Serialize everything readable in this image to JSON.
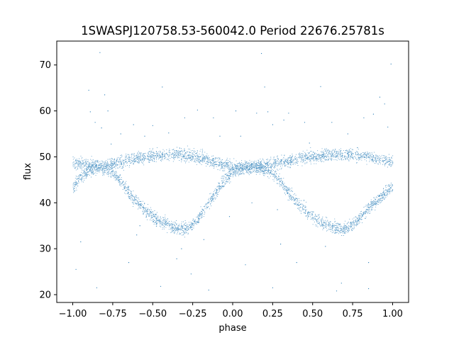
{
  "chart_data": {
    "type": "scatter",
    "title": "1SWASPJ120758.53-560042.0 Period 22676.25781s",
    "xlabel": "phase",
    "ylabel": "flux",
    "xlim": [
      -1.1,
      1.1
    ],
    "ylim": [
      18.3,
      75.2
    ],
    "xticks": [
      -1.0,
      -0.75,
      -0.5,
      -0.25,
      0.0,
      0.25,
      0.5,
      0.75,
      1.0
    ],
    "xtick_labels": [
      "−1.00",
      "−0.75",
      "−0.50",
      "−0.25",
      "0.00",
      "0.25",
      "0.50",
      "0.75",
      "1.00"
    ],
    "yticks": [
      20,
      30,
      40,
      50,
      60,
      70
    ],
    "ytick_labels": [
      "20",
      "30",
      "40",
      "50",
      "60",
      "70"
    ],
    "grid": false,
    "legend": "none",
    "color": "#1f77b4",
    "series": [
      {
        "x": [
          -1.0,
          -0.95,
          -0.9,
          -0.85,
          -0.8,
          -0.75,
          -0.7,
          -0.65,
          -0.6,
          -0.55,
          -0.5,
          -0.45,
          -0.4,
          -0.35,
          -0.3,
          -0.25,
          -0.2,
          -0.15,
          -0.1,
          -0.05,
          0.0,
          0.05,
          0.1,
          0.15,
          0.2,
          0.25,
          0.3,
          0.35,
          0.4,
          0.45,
          0.5,
          0.55,
          0.6,
          0.65,
          0.7,
          0.75,
          0.8,
          0.85,
          0.9,
          0.95,
          1.0
        ],
        "y": [
          43.5,
          45.5,
          47.0,
          47.5,
          47.5,
          46.5,
          44.5,
          42.0,
          40.0,
          38.5,
          37.0,
          35.8,
          35.0,
          34.5,
          34.3,
          35.3,
          37.5,
          40.0,
          42.5,
          45.0,
          46.5,
          47.5,
          47.8,
          47.7,
          47.3,
          46.5,
          44.5,
          42.0,
          40.0,
          38.5,
          37.0,
          35.8,
          35.0,
          34.5,
          34.3,
          35.3,
          37.0,
          39.0,
          40.5,
          42.0,
          43.5
        ]
      },
      {
        "x": [
          -1.0,
          -0.95,
          -0.9,
          -0.85,
          -0.8,
          -0.75,
          -0.7,
          -0.65,
          -0.6,
          -0.55,
          -0.5,
          -0.45,
          -0.4,
          -0.35,
          -0.3,
          -0.25,
          -0.2,
          -0.15,
          -0.1,
          -0.05,
          0.0,
          0.05,
          0.1,
          0.15,
          0.2,
          0.25,
          0.3,
          0.35,
          0.4,
          0.45,
          0.5,
          0.55,
          0.6,
          0.65,
          0.7,
          0.75,
          0.8,
          0.85,
          0.9,
          0.95,
          1.0
        ],
        "y": [
          48.8,
          48.5,
          48.2,
          48.0,
          48.0,
          48.3,
          48.8,
          49.3,
          49.7,
          50.0,
          50.2,
          50.4,
          50.5,
          50.5,
          50.4,
          50.2,
          49.8,
          49.3,
          48.8,
          48.3,
          47.8,
          47.7,
          47.8,
          48.0,
          48.2,
          48.5,
          48.8,
          49.2,
          49.5,
          49.8,
          50.0,
          50.2,
          50.4,
          50.5,
          50.5,
          50.4,
          50.2,
          49.9,
          49.5,
          49.2,
          48.8
        ]
      }
    ],
    "outliers": [
      [
        -0.83,
        72.7
      ],
      [
        -0.9,
        64.5
      ],
      [
        -0.89,
        59.8
      ],
      [
        -0.86,
        57.5
      ],
      [
        -0.82,
        56.3
      ],
      [
        -0.78,
        60.0
      ],
      [
        -0.8,
        63.5
      ],
      [
        -0.76,
        52.8
      ],
      [
        -0.7,
        55.0
      ],
      [
        -0.62,
        57.0
      ],
      [
        -0.58,
        35.0
      ],
      [
        -0.55,
        54.5
      ],
      [
        -0.5,
        56.8
      ],
      [
        -0.44,
        65.2
      ],
      [
        -0.4,
        55.2
      ],
      [
        -0.35,
        27.8
      ],
      [
        -0.32,
        30.0
      ],
      [
        -0.3,
        58.5
      ],
      [
        -0.26,
        24.5
      ],
      [
        -0.22,
        60.2
      ],
      [
        -0.18,
        32.0
      ],
      [
        -0.12,
        58.5
      ],
      [
        -0.08,
        54.5
      ],
      [
        -0.06,
        43.5
      ],
      [
        -0.02,
        37.0
      ],
      [
        0.02,
        60.0
      ],
      [
        0.05,
        54.5
      ],
      [
        0.08,
        26.5
      ],
      [
        0.12,
        40.0
      ],
      [
        0.15,
        59.5
      ],
      [
        0.18,
        72.5
      ],
      [
        0.2,
        65.2
      ],
      [
        0.22,
        59.8
      ],
      [
        0.25,
        57.0
      ],
      [
        0.28,
        38.5
      ],
      [
        0.3,
        31.0
      ],
      [
        0.32,
        58.0
      ],
      [
        0.35,
        59.5
      ],
      [
        0.4,
        27.0
      ],
      [
        0.45,
        57.5
      ],
      [
        0.48,
        53.0
      ],
      [
        0.55,
        65.3
      ],
      [
        0.58,
        30.5
      ],
      [
        0.62,
        57.5
      ],
      [
        0.68,
        22.5
      ],
      [
        0.72,
        55.0
      ],
      [
        0.78,
        52.0
      ],
      [
        0.82,
        58.5
      ],
      [
        0.85,
        27.0
      ],
      [
        0.88,
        59.3
      ],
      [
        0.92,
        63.0
      ],
      [
        0.95,
        61.5
      ],
      [
        0.97,
        56.5
      ],
      [
        0.99,
        70.2
      ],
      [
        -0.95,
        31.5
      ],
      [
        -0.98,
        25.5
      ],
      [
        -0.85,
        21.5
      ],
      [
        -0.65,
        27.0
      ],
      [
        -0.45,
        21.8
      ],
      [
        -0.15,
        21.0
      ],
      [
        0.25,
        21.5
      ],
      [
        0.65,
        20.8
      ],
      [
        0.85,
        21.3
      ],
      [
        -0.6,
        33.0
      ]
    ]
  }
}
